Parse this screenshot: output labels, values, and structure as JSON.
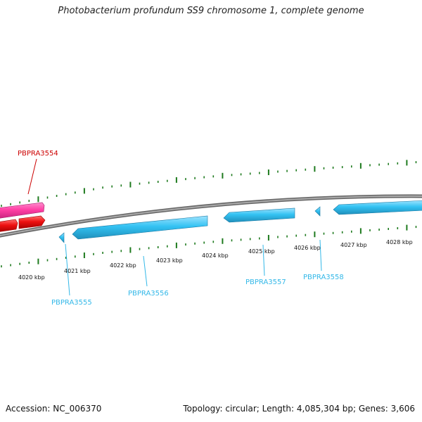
{
  "title": "Photobacterium profundum SS9 chromosome 1, complete genome",
  "footer": {
    "accession": "Accession: NC_006370",
    "stats": "Topology: circular; Length: 4,085,304 bp; Genes: 3,606"
  },
  "colors": {
    "tick": "#1e7a1e",
    "backbone": "#888888",
    "forward_gene": "#ff3fa4",
    "forward_gene2": "#ee1111",
    "reverse_gene": "#33c2f3",
    "label_red": "#cc0000",
    "label_blue": "#33b8e8"
  },
  "scale_labels": [
    "4020 kbp",
    "4021 kbp",
    "4022 kbp",
    "4023 kbp",
    "4024 kbp",
    "4025 kbp",
    "4026 kbp",
    "4027 kbp",
    "4028 kbp"
  ],
  "gene_labels": [
    "PBPRA3554",
    "PBPRA3555",
    "PBPRA3556",
    "PBPRA3557",
    "PBPRA3558"
  ]
}
